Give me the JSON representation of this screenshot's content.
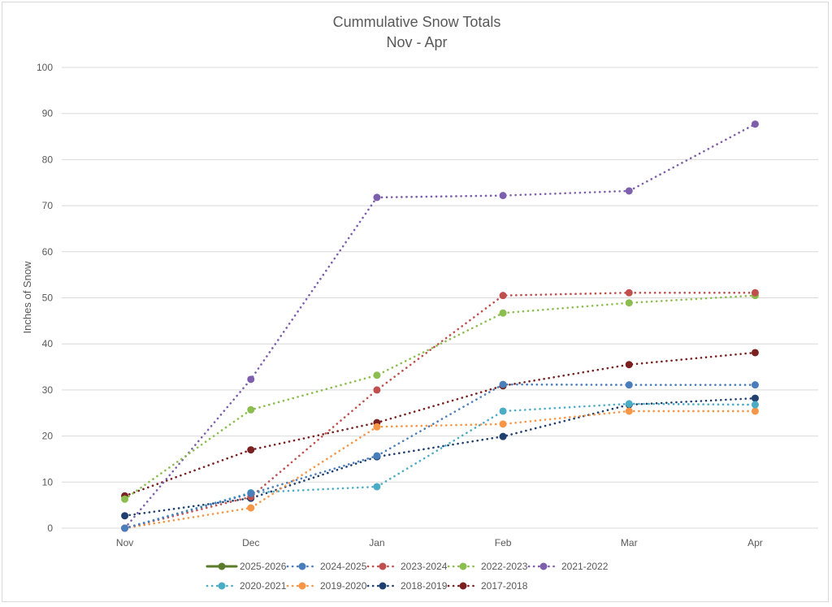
{
  "chart_data": {
    "type": "line",
    "title": "Cummulative Snow Totals",
    "subtitle": "Nov - Apr",
    "xlabel": "",
    "ylabel": "Inches of Snow",
    "ylim": [
      0,
      100
    ],
    "yticks": [
      0,
      10,
      20,
      30,
      40,
      50,
      60,
      70,
      80,
      90,
      100
    ],
    "grid": true,
    "legend_position": "bottom",
    "categories": [
      "Nov",
      "Dec",
      "Jan",
      "Feb",
      "Mar",
      "Apr"
    ],
    "series": [
      {
        "name": "2025-2026",
        "color": "#5b7b2a",
        "style": "solid",
        "values": []
      },
      {
        "name": "2024-2025",
        "color": "#4a7ebb",
        "style": "dotted",
        "values": [
          0,
          7.5,
          15.7,
          31.2,
          31.1,
          31.1
        ]
      },
      {
        "name": "2023-2024",
        "color": "#c0504d",
        "style": "dotted",
        "values": [
          0,
          6.8,
          30.0,
          50.5,
          51.1,
          51.1
        ]
      },
      {
        "name": "2022-2023",
        "color": "#8cbd4f",
        "style": "dotted",
        "values": [
          6.3,
          25.7,
          33.2,
          46.7,
          48.9,
          50.5
        ]
      },
      {
        "name": "2021-2022",
        "color": "#7e5fad",
        "style": "dotted",
        "values": [
          0,
          32.3,
          71.8,
          72.2,
          73.2,
          87.7
        ]
      },
      {
        "name": "2020-2021",
        "color": "#4bacc6",
        "style": "dotted",
        "values": [
          0,
          7.7,
          9.0,
          25.4,
          27.0,
          26.8
        ]
      },
      {
        "name": "2019-2020",
        "color": "#f79646",
        "style": "dotted",
        "values": [
          0,
          4.4,
          22.0,
          22.6,
          25.4,
          25.4
        ]
      },
      {
        "name": "2018-2019",
        "color": "#1f3f6e",
        "style": "dotted",
        "values": [
          2.7,
          6.5,
          15.5,
          19.9,
          26.8,
          28.2
        ]
      },
      {
        "name": "2017-2018",
        "color": "#7b2020",
        "style": "dotted",
        "values": [
          7.0,
          17.0,
          22.9,
          30.9,
          35.5,
          38.1
        ]
      }
    ]
  }
}
